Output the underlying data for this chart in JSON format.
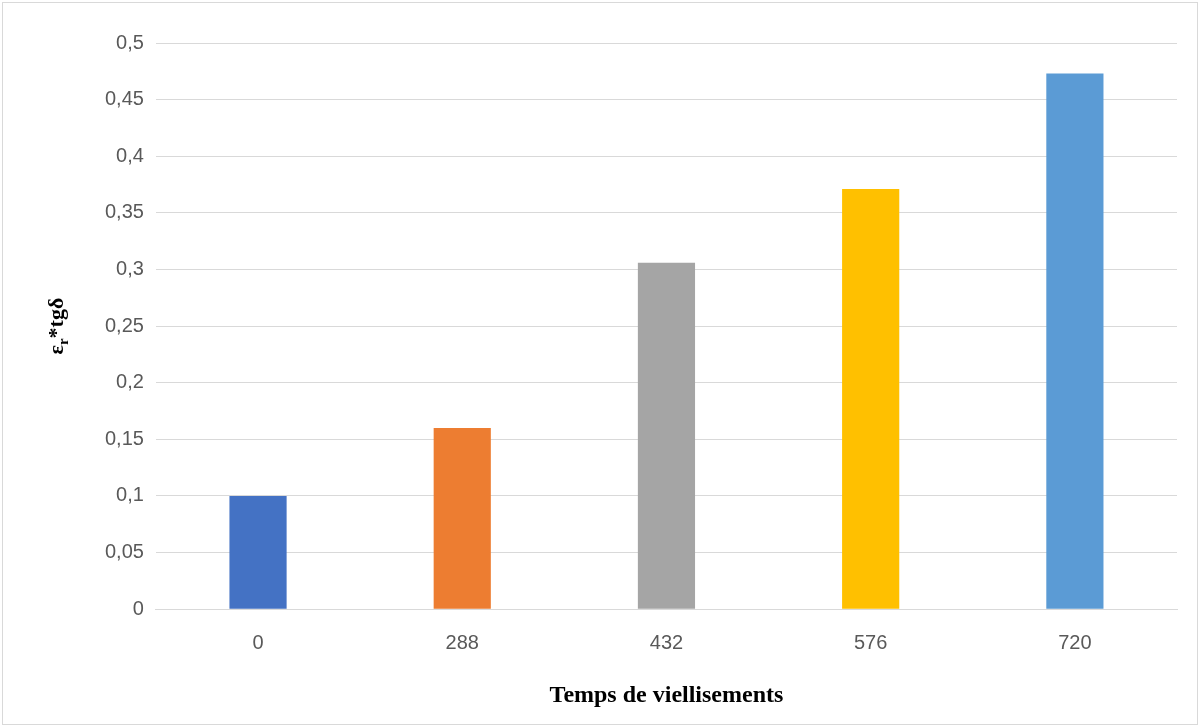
{
  "chart_data": {
    "type": "bar",
    "xlabel": "Temps de viellisements",
    "ylabel": "ε$_{r}$*tgδ",
    "categories": [
      "0",
      "288",
      "432",
      "576",
      "720"
    ],
    "values": [
      0.1,
      0.16,
      0.306,
      0.371,
      0.473
    ],
    "colors": [
      "#4472c4",
      "#ed7d31",
      "#a5a5a5",
      "#ffc000",
      "#5b9bd5"
    ],
    "ylim": [
      0,
      0.5
    ],
    "yticks": [
      0,
      {
        "value": 0.05,
        "label": "0,05"
      },
      {
        "value": 0.1,
        "label": "0,1"
      },
      {
        "value": 0.15,
        "label": "0,15"
      },
      {
        "value": 0.2,
        "label": "0,2"
      },
      {
        "value": 0.25,
        "label": "0,25"
      },
      {
        "value": 0.3,
        "label": "0,3"
      },
      {
        "value": 0.35,
        "label": "0,35"
      },
      {
        "value": 0.4,
        "label": "0,4"
      },
      {
        "value": 0.45,
        "label": "0,45"
      },
      {
        "value": 0.5,
        "label": "0,5"
      }
    ],
    "grid": "y"
  }
}
